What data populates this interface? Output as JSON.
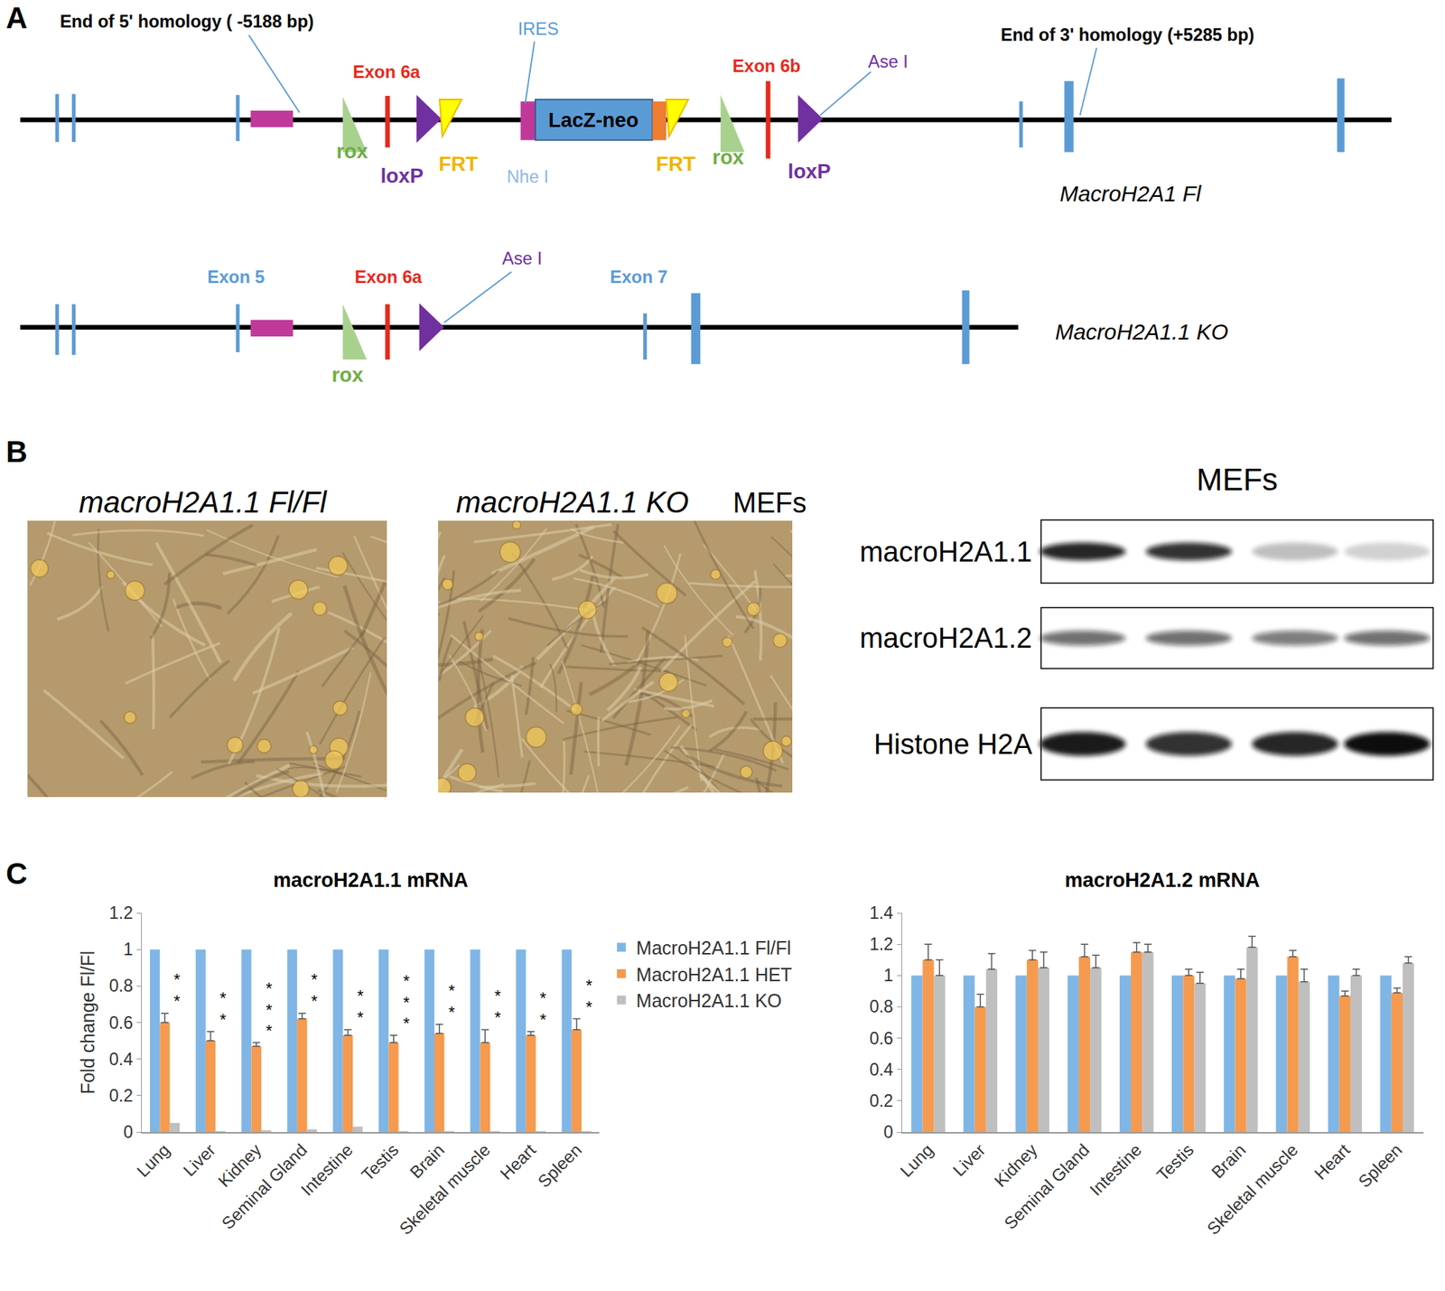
{
  "panel_a": {
    "label": "A",
    "fl": {
      "name": "MacroH2A1 Fl",
      "homology5": "End of 5' homology ( -5188 bp)",
      "exon6a": "Exon 6a",
      "ires": "IRES",
      "nhe": "Nhe I",
      "lacz": "LacZ-neo",
      "rox": "rox",
      "loxp": "loxP",
      "frt": "FRT",
      "exon6b": "Exon 6b",
      "ase": "Ase I",
      "homology3": "End of 3' homology (+5285 bp)"
    },
    "ko": {
      "name": "MacroH2A1.1 KO",
      "exon5": "Exon 5",
      "exon6a": "Exon 6a",
      "ase": "Ase I",
      "exon7": "Exon 7",
      "rox": "rox"
    }
  },
  "panel_b": {
    "label": "B",
    "photos": [
      {
        "title": "macroH2A1.1 Fl/Fl"
      },
      {
        "title": "macroH2A1.1 KO"
      }
    ],
    "photo_caption": "MEFs",
    "blot": {
      "title": "MEFs",
      "rows": [
        {
          "name": "macroH2A1.1",
          "intensity": [
            0.9,
            0.85,
            0.25,
            0.18
          ]
        },
        {
          "name": "macroH2A1.2",
          "intensity": [
            0.6,
            0.6,
            0.55,
            0.6
          ]
        },
        {
          "name": "Histone H2A",
          "intensity": [
            0.95,
            0.85,
            0.9,
            1.0
          ]
        }
      ]
    }
  },
  "panel_c": {
    "label": "C"
  },
  "chart_data": [
    {
      "type": "bar",
      "title": "macroH2A1.1 mRNA",
      "y_label": "Fold change Fl/Fl",
      "categories": [
        "Lung",
        "Liver",
        "Kidney",
        "Seminal Gland",
        "Intestine",
        "Testis",
        "Brain",
        "Skeletal muscle",
        "Heart",
        "Spleen"
      ],
      "series": [
        {
          "name": "MacroH2A1.1 Fl/Fl",
          "color": "#7fb6e6",
          "values": [
            1,
            1,
            1,
            1,
            1,
            1,
            1,
            1,
            1,
            1
          ]
        },
        {
          "name": "MacroH2A1.1 HET",
          "color": "#f59a4e",
          "values": [
            0.6,
            0.5,
            0.47,
            0.62,
            0.53,
            0.49,
            0.54,
            0.49,
            0.53,
            0.56
          ],
          "errors": [
            0.05,
            0.05,
            0.02,
            0.03,
            0.03,
            0.04,
            0.05,
            0.07,
            0.02,
            0.06
          ],
          "significance": [
            "**",
            "**",
            "***",
            "**",
            "**",
            "***",
            "**",
            "**",
            "**",
            "**"
          ]
        },
        {
          "name": "MacroH2A1.1 KO",
          "color": "#bfbfbf",
          "values": [
            0.05,
            0.005,
            0.01,
            0.015,
            0.03,
            0.005,
            0.005,
            0.005,
            0.005,
            0.005
          ]
        }
      ],
      "ylim": [
        0,
        1.2
      ],
      "yticks": [
        0,
        0.2,
        0.4,
        0.6,
        0.8,
        1,
        1.2
      ],
      "grid": false,
      "legend": "right"
    },
    {
      "type": "bar",
      "title": "macroH2A1.2 mRNA",
      "categories": [
        "Lung",
        "Liver",
        "Kidney",
        "Seminal Gland",
        "Intestine",
        "Testis",
        "Brain",
        "Skeletal muscle",
        "Heart",
        "Spleen"
      ],
      "series": [
        {
          "color": "#7fb6e6",
          "values": [
            1,
            1,
            1,
            1,
            1,
            1,
            1,
            1,
            1,
            1
          ]
        },
        {
          "color": "#f59a4e",
          "values": [
            1.1,
            0.8,
            1.1,
            1.12,
            1.15,
            1.0,
            0.98,
            1.12,
            0.87,
            0.89
          ],
          "errors": [
            0.1,
            0.08,
            0.06,
            0.08,
            0.06,
            0.04,
            0.06,
            0.04,
            0.03,
            0.03
          ]
        },
        {
          "color": "#bfbfbf",
          "values": [
            1.0,
            1.04,
            1.05,
            1.05,
            1.15,
            0.95,
            1.18,
            0.96,
            1.0,
            1.08
          ],
          "errors": [
            0.1,
            0.1,
            0.1,
            0.08,
            0.05,
            0.07,
            0.07,
            0.08,
            0.04,
            0.04
          ]
        }
      ],
      "ylim": [
        0,
        1.4
      ],
      "yticks": [
        0,
        0.2,
        0.4,
        0.6,
        0.8,
        1,
        1.2,
        1.4
      ],
      "grid": false
    }
  ]
}
